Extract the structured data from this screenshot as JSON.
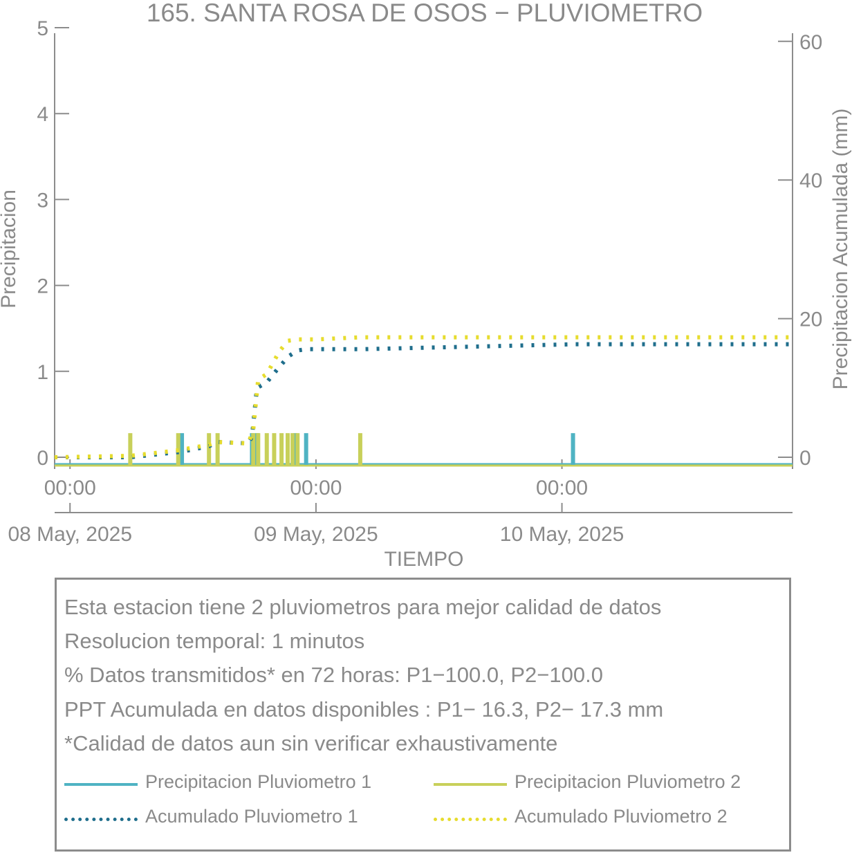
{
  "chart_data": {
    "type": "bar",
    "title": "165. SANTA ROSA DE OSOS − PLUVIOMETRO",
    "xlabel": "TIEMPO",
    "ylabel_left": "Precipitacion",
    "ylabel_right": "Precipitacion Acumulada (mm)",
    "ylim_left": [
      0,
      5
    ],
    "ylim_right": [
      0,
      60
    ],
    "yticks_left": [
      "0",
      "1",
      "2",
      "3",
      "4",
      "5"
    ],
    "yticks_right": [
      "0",
      "20",
      "40",
      "60"
    ],
    "xlim_hours": [
      -1.25,
      58.75
    ],
    "x_ticks": [
      {
        "hour": 0,
        "time": "00:00",
        "date": "08 May, 2025"
      },
      {
        "hour": 20,
        "time": "00:00",
        "date": "09 May, 2025"
      },
      {
        "hour": 40,
        "time": "00:00",
        "date": "10 May, 2025"
      }
    ],
    "grid": false,
    "series": [
      {
        "name": "Precipitacion Pluviometro 1",
        "kind": "bar",
        "axis": "left",
        "color": "#4fb3c3",
        "points": [
          [
            9.1,
            0.2
          ],
          [
            14.8,
            0.2
          ],
          [
            15.2,
            0.2
          ],
          [
            18.3,
            0.2
          ],
          [
            19.2,
            0.2
          ],
          [
            40.9,
            0.2
          ]
        ]
      },
      {
        "name": "Precipitacion Pluviometro 2",
        "kind": "bar",
        "axis": "left",
        "color": "#c8d05a",
        "points": [
          [
            4.9,
            0.2
          ],
          [
            8.8,
            0.2
          ],
          [
            11.3,
            0.2
          ],
          [
            12.0,
            0.2
          ],
          [
            14.9,
            0.2
          ],
          [
            15.3,
            0.2
          ],
          [
            16.0,
            0.2
          ],
          [
            16.6,
            0.2
          ],
          [
            17.2,
            0.2
          ],
          [
            17.7,
            0.2
          ],
          [
            18.1,
            0.2
          ],
          [
            18.5,
            0.2
          ],
          [
            23.6,
            0.2
          ]
        ]
      },
      {
        "name": "Acumulado Pluviometro 1",
        "kind": "line",
        "axis": "right",
        "color": "#1f6e8c",
        "x": [
          -1.25,
          4.9,
          9.1,
          11.3,
          12.0,
          14.5,
          14.8,
          15.2,
          16.0,
          17.0,
          17.8,
          18.5,
          19.2,
          20.0,
          24.0,
          40.9,
          58.75
        ],
        "y": [
          0,
          0,
          0.8,
          1.6,
          2.2,
          2.0,
          3.0,
          10.0,
          10.8,
          13.0,
          14.6,
          15.4,
          15.6,
          15.6,
          15.6,
          16.3,
          16.3
        ]
      },
      {
        "name": "Acumulado Pluviometro 2",
        "kind": "line",
        "axis": "right",
        "color": "#e6dc2e",
        "x": [
          -1.25,
          4.9,
          8.8,
          11.3,
          12.0,
          14.5,
          14.9,
          15.3,
          16.0,
          17.0,
          17.7,
          18.5,
          20.0,
          23.6,
          58.75
        ],
        "y": [
          0,
          0.2,
          1.0,
          1.8,
          2.2,
          2.0,
          4.0,
          11.2,
          12.0,
          15.2,
          16.8,
          17.0,
          17.0,
          17.3,
          17.3
        ]
      }
    ]
  },
  "info": {
    "lines": [
      "Esta estacion tiene 2 pluviometros para mejor calidad de datos",
      "Resolucion temporal: 1 minutos",
      "% Datos transmitidos* en 72 horas: P1−100.0, P2−100.0",
      "PPT Acumulada en datos disponibles : P1− 16.3, P2− 17.3 mm",
      "*Calidad de datos aun sin verificar exhaustivamente"
    ]
  },
  "legend": {
    "items": [
      {
        "label": "Precipitacion Pluviometro 1",
        "color": "#4fb3c3",
        "style": "solid"
      },
      {
        "label": "Precipitacion Pluviometro 2",
        "color": "#c8d05a",
        "style": "solid"
      },
      {
        "label": "Acumulado Pluviometro 1",
        "color": "#1f6e8c",
        "style": "dotted"
      },
      {
        "label": "Acumulado Pluviometro 2",
        "color": "#e6dc2e",
        "style": "dotted"
      }
    ]
  }
}
